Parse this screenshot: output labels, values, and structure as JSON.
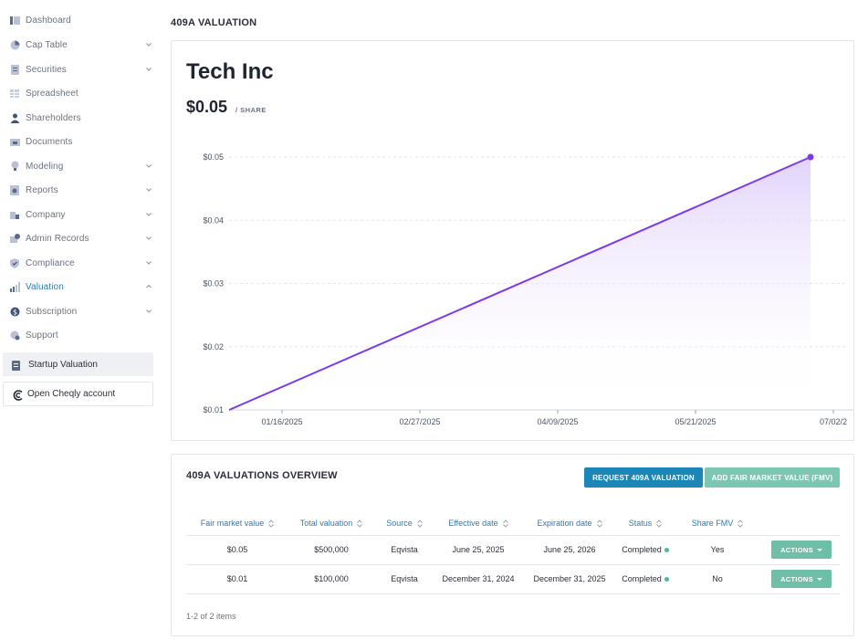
{
  "sidebar": {
    "items": [
      {
        "label": "Dashboard",
        "icon": "dashboard-icon",
        "chevron": false
      },
      {
        "label": "Cap Table",
        "icon": "pie-chart-icon",
        "chevron": true
      },
      {
        "label": "Securities",
        "icon": "document-icon",
        "chevron": true
      },
      {
        "label": "Spreadsheet",
        "icon": "spreadsheet-icon",
        "chevron": false
      },
      {
        "label": "Shareholders",
        "icon": "person-icon",
        "chevron": false
      },
      {
        "label": "Documents",
        "icon": "folder-icon",
        "chevron": false
      },
      {
        "label": "Modeling",
        "icon": "lightbulb-icon",
        "chevron": true
      },
      {
        "label": "Reports",
        "icon": "report-icon",
        "chevron": true
      },
      {
        "label": "Company",
        "icon": "building-icon",
        "chevron": true
      },
      {
        "label": "Admin Records",
        "icon": "records-icon",
        "chevron": true
      },
      {
        "label": "Compliance",
        "icon": "shield-icon",
        "chevron": true
      },
      {
        "label": "Valuation",
        "icon": "valuation-icon",
        "chevron": true,
        "active": true,
        "expanded": true
      },
      {
        "label": "Subscription",
        "icon": "dollar-icon",
        "chevron": true
      },
      {
        "label": "Support",
        "icon": "support-icon",
        "chevron": false
      }
    ],
    "startup_valuation": "Startup Valuation",
    "open_cheqly": "Open Cheqly account"
  },
  "page": {
    "title": "409A VALUATION"
  },
  "summary": {
    "company": "Tech Inc",
    "price": "$0.05",
    "per_share": "/ SHARE"
  },
  "chart_data": {
    "type": "area",
    "x": [
      "2024-12-31",
      "2025-06-25"
    ],
    "values": [
      0.01,
      0.05
    ],
    "y_ticks": [
      "$0.01",
      "$0.02",
      "$0.03",
      "$0.04",
      "$0.05"
    ],
    "x_ticks": [
      "01/16/2025",
      "02/27/2025",
      "04/09/2025",
      "05/21/2025",
      "07/02/2"
    ],
    "ylim": [
      0.01,
      0.05
    ],
    "grid": true,
    "line_color": "#7c3aed",
    "fill_color": "#e9dcfb"
  },
  "overview": {
    "title": "409A VALUATIONS OVERVIEW",
    "request_button": "REQUEST 409A VALUATION",
    "add_fmv_button": "ADD FAIR MARKET VALUE (FMV)",
    "columns": [
      "Fair market value",
      "Total valuation",
      "Source",
      "Effective date",
      "Expiration date",
      "Status",
      "Share FMV"
    ],
    "rows": [
      {
        "fmv": "$0.05",
        "total": "$500,000",
        "source": "Eqvista",
        "effective": "June 25, 2025",
        "expiration": "June 25, 2026",
        "status": "Completed",
        "share_fmv": "Yes",
        "action": "ACTIONS"
      },
      {
        "fmv": "$0.01",
        "total": "$100,000",
        "source": "Eqvista",
        "effective": "December 31, 2024",
        "expiration": "December 31, 2025",
        "status": "Completed",
        "share_fmv": "No",
        "action": "ACTIONS"
      }
    ],
    "pagination": "1-2 of 2 items"
  },
  "colors": {
    "accent": "#2c7bb3",
    "primary_button": "#1b87b8",
    "secondary_button": "#7cc7b2",
    "status_completed": "#4db89a"
  }
}
